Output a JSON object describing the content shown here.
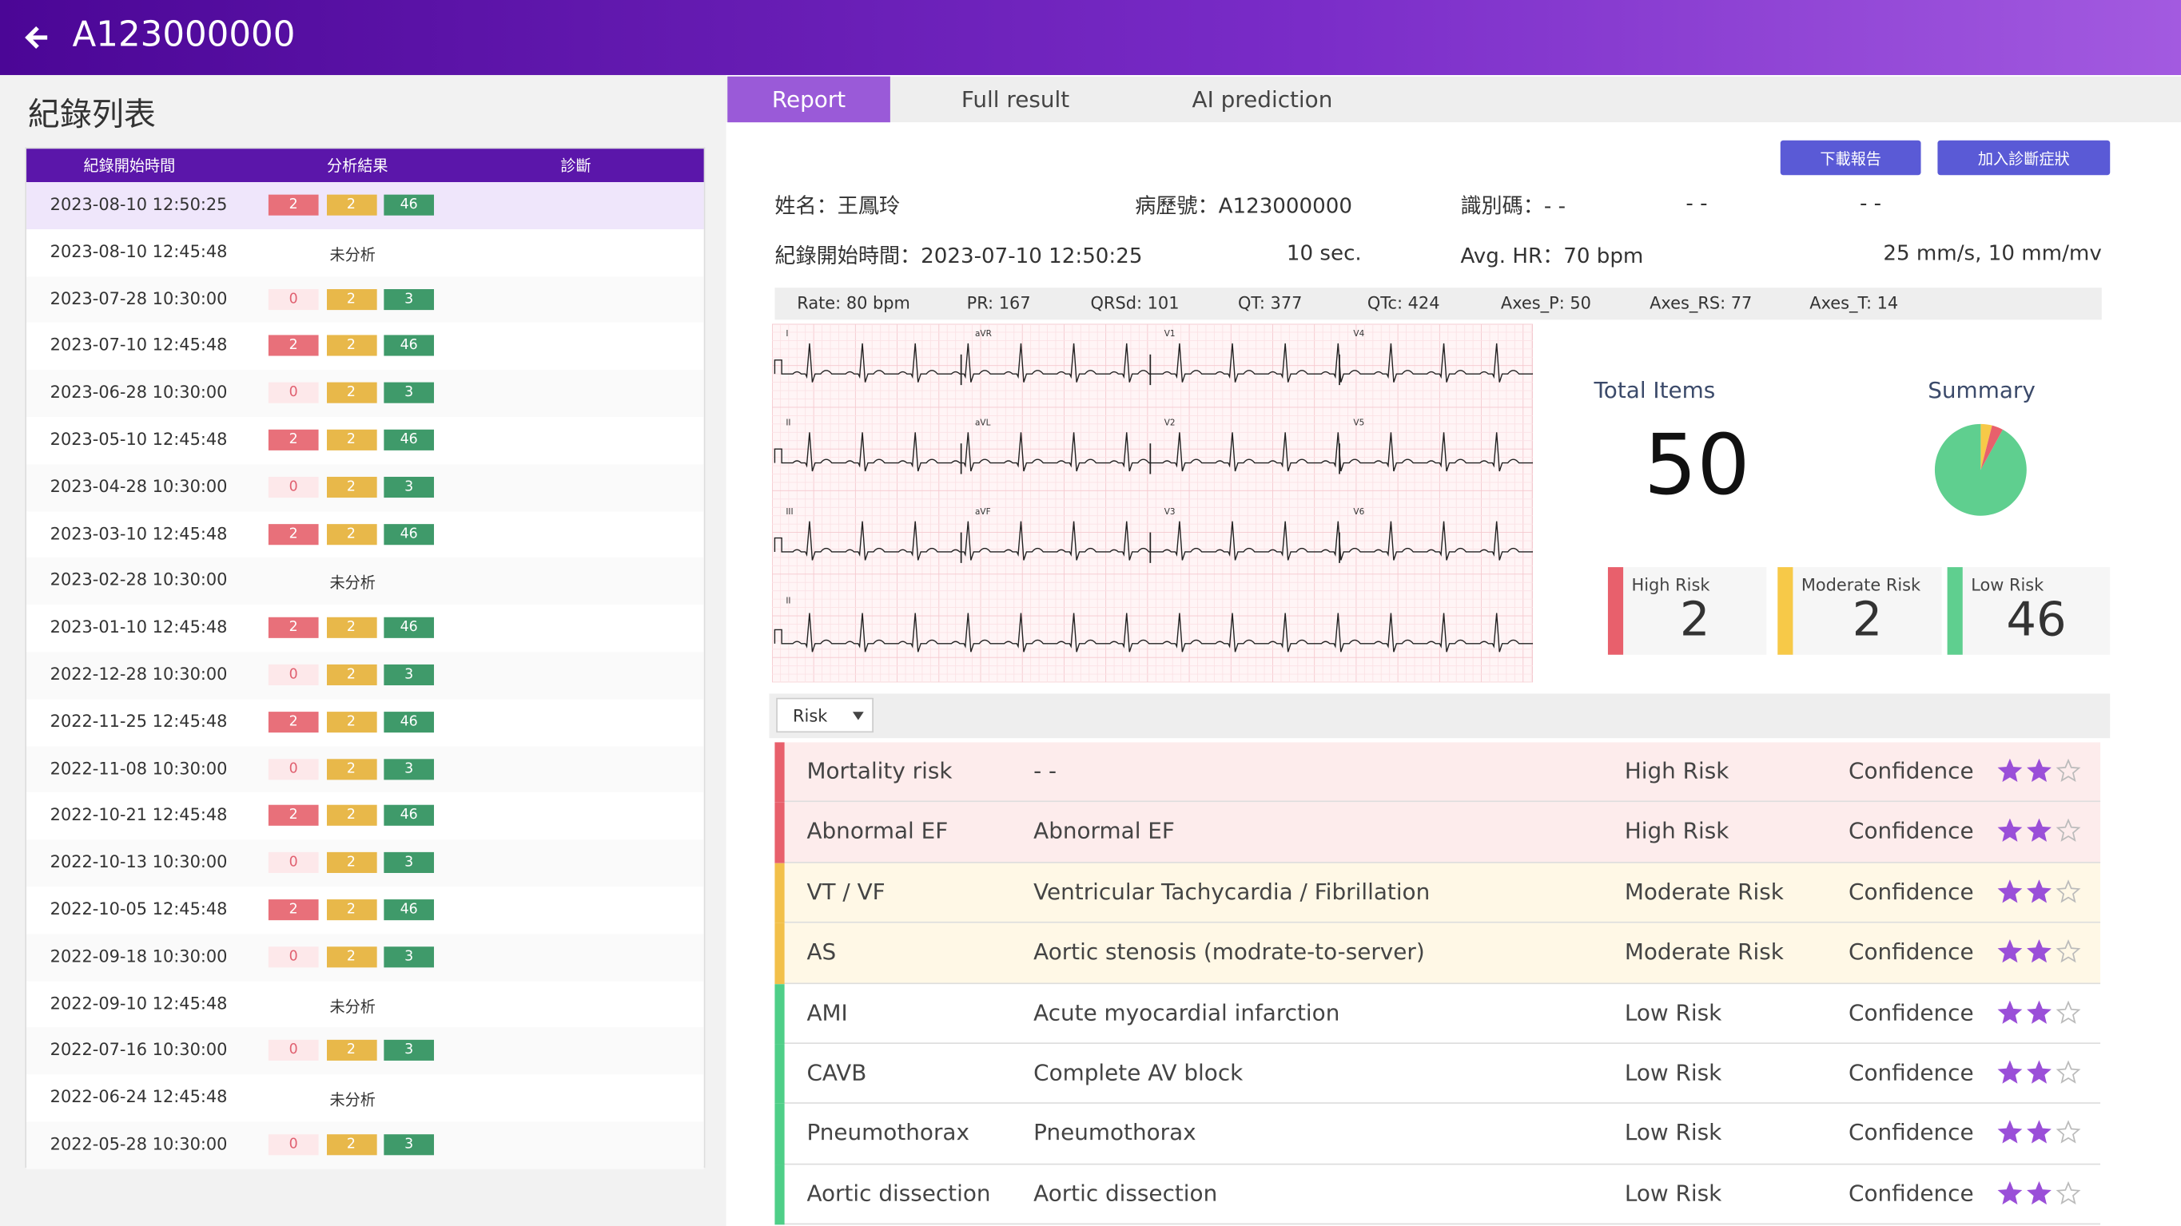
{
  "header": {
    "title": "A123000000"
  },
  "records": {
    "title": "紀錄列表",
    "columns": [
      "紀錄開始時間",
      "分析結果",
      "診斷"
    ],
    "rows": [
      {
        "time": "2023-08-10 12:50:25",
        "results": [
          2,
          2,
          46
        ]
      },
      {
        "time": "2023-08-10 12:45:48",
        "status": "未分析"
      },
      {
        "time": "2023-07-28 10:30:00",
        "results": [
          0,
          2,
          3
        ]
      },
      {
        "time": "2023-07-10 12:45:48",
        "results": [
          2,
          2,
          46
        ]
      },
      {
        "time": "2023-06-28 10:30:00",
        "results": [
          0,
          2,
          3
        ]
      },
      {
        "time": "2023-05-10 12:45:48",
        "results": [
          2,
          2,
          46
        ]
      },
      {
        "time": "2023-04-28 10:30:00",
        "results": [
          0,
          2,
          3
        ]
      },
      {
        "time": "2023-03-10 12:45:48",
        "results": [
          2,
          2,
          46
        ]
      },
      {
        "time": "2023-02-28 10:30:00",
        "status": "未分析"
      },
      {
        "time": "2023-01-10 12:45:48",
        "results": [
          2,
          2,
          46
        ]
      },
      {
        "time": "2022-12-28 10:30:00",
        "results": [
          0,
          2,
          3
        ]
      },
      {
        "time": "2022-11-25 12:45:48",
        "results": [
          2,
          2,
          46
        ]
      },
      {
        "time": "2022-11-08 10:30:00",
        "results": [
          0,
          2,
          3
        ]
      },
      {
        "time": "2022-10-21 12:45:48",
        "results": [
          2,
          2,
          46
        ]
      },
      {
        "time": "2022-10-13 10:30:00",
        "results": [
          0,
          2,
          3
        ]
      },
      {
        "time": "2022-10-05 12:45:48",
        "results": [
          2,
          2,
          46
        ]
      },
      {
        "time": "2022-09-18 10:30:00",
        "results": [
          0,
          2,
          3
        ]
      },
      {
        "time": "2022-09-10 12:45:48",
        "status": "未分析"
      },
      {
        "time": "2022-07-16 10:30:00",
        "results": [
          0,
          2,
          3
        ]
      },
      {
        "time": "2022-06-24 12:45:48",
        "status": "未分析"
      },
      {
        "time": "2022-05-28 10:30:00",
        "results": [
          0,
          2,
          3
        ]
      }
    ]
  },
  "tabs": [
    "Report",
    "Full result",
    "AI prediction"
  ],
  "buttons": [
    "下載報告",
    "加入診斷症狀"
  ],
  "info": {
    "name": "姓名：王鳳玲",
    "record_no": "病歷號：A123000000",
    "id": "識別碼：- -",
    "blank1": "- -",
    "blank2": "- -",
    "start": "紀錄開始時間：2023-07-10 12:50:25",
    "duration": "10 sec.",
    "hr": "Avg. HR：70 bpm",
    "scale": "25 mm/s, 10 mm/mv"
  },
  "measurements": [
    "Rate: 80 bpm",
    "PR: 167",
    "QRSd: 101",
    "QT: 377",
    "QTc: 424",
    "Axes_P: 50",
    "Axes_RS: 77",
    "Axes_T: 14"
  ],
  "ecg": {
    "leads": [
      "I",
      "aVR",
      "V1",
      "V4",
      "II",
      "aVL",
      "V2",
      "V5",
      "III",
      "aVF",
      "V3",
      "V6",
      "II"
    ]
  },
  "summary": {
    "total_label": "Total Items",
    "total": 50,
    "summary_label": "Summary",
    "risks": [
      {
        "name": "High Risk",
        "value": 2,
        "color": "#e8606c"
      },
      {
        "name": "Moderate Risk",
        "value": 2,
        "color": "#f7c948"
      },
      {
        "name": "Low Risk",
        "value": 46,
        "color": "#5fcf8f"
      }
    ]
  },
  "filter": "Risk",
  "rating_max": 3,
  "risk_table": [
    {
      "code": "Mortality risk",
      "desc": "- -",
      "level": "High Risk",
      "confidence": "Confidence",
      "rating": 2,
      "color": "#e8606c",
      "bg": "#fdecec"
    },
    {
      "code": "Abnormal EF",
      "desc": "Abnormal EF",
      "level": "High Risk",
      "confidence": "Confidence",
      "rating": 2,
      "color": "#e8606c",
      "bg": "#fdecec"
    },
    {
      "code": "VT / VF",
      "desc": "Ventricular Tachycardia / Fibrillation",
      "level": "Moderate Risk",
      "confidence": "Confidence",
      "rating": 2,
      "color": "#f2c04a",
      "bg": "#fff8e6"
    },
    {
      "code": "AS",
      "desc": "Aortic stenosis (modrate-to-server)",
      "level": "Moderate Risk",
      "confidence": "Confidence",
      "rating": 2,
      "color": "#f2c04a",
      "bg": "#fff8e6"
    },
    {
      "code": "AMI",
      "desc": "Acute myocardial infarction",
      "level": "Low Risk",
      "confidence": "Confidence",
      "rating": 2,
      "color": "#4fcf88",
      "bg": "#ffffff"
    },
    {
      "code": "CAVB",
      "desc": "Complete AV block",
      "level": "Low Risk",
      "confidence": "Confidence",
      "rating": 2,
      "color": "#4fcf88",
      "bg": "#ffffff"
    },
    {
      "code": "Pneumothorax",
      "desc": "Pneumothorax",
      "level": "Low Risk",
      "confidence": "Confidence",
      "rating": 2,
      "color": "#4fcf88",
      "bg": "#ffffff"
    },
    {
      "code": "Aortic dissection",
      "desc": "Aortic dissection",
      "level": "Low Risk",
      "confidence": "Confidence",
      "rating": 2,
      "color": "#4fcf88",
      "bg": "#ffffff"
    }
  ]
}
